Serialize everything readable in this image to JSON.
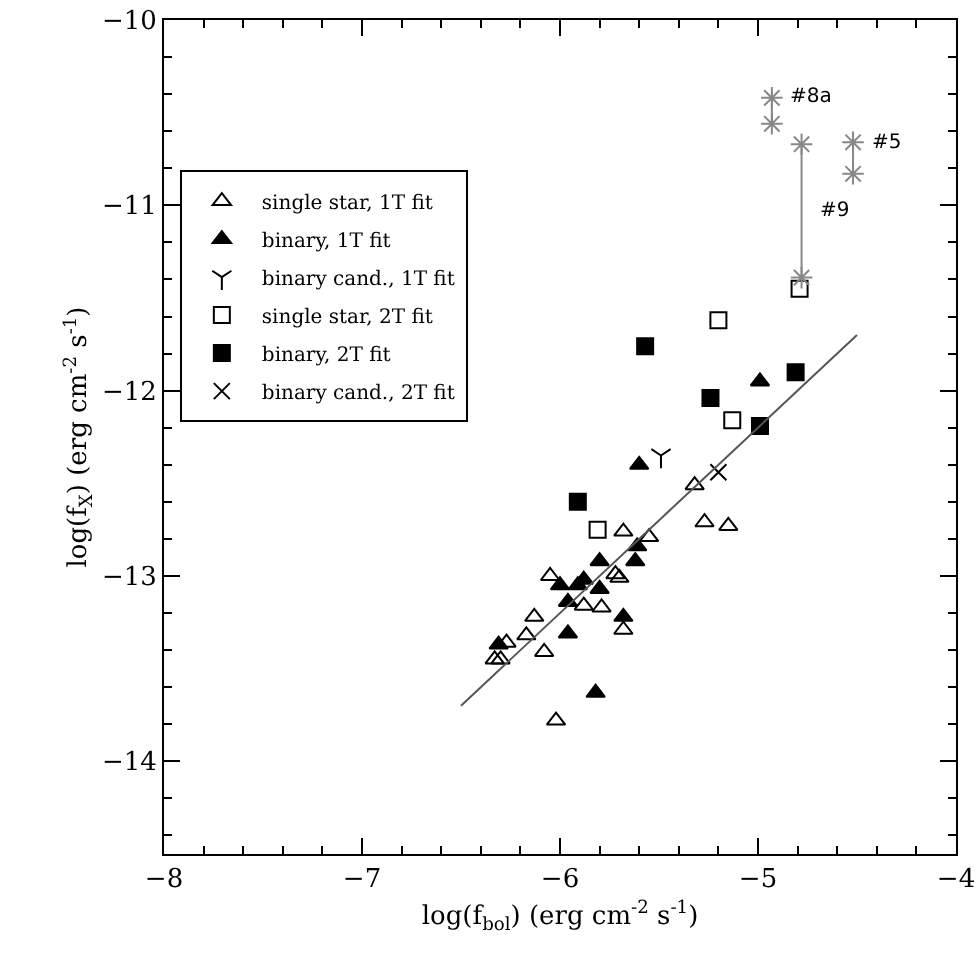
{
  "chart_data": {
    "type": "scatter",
    "xlabel": "log(f$_{bol}$) (erg cm$^{-2}$ s$^{-1}$)",
    "ylabel": "log(f$_{X}$) (erg cm$^{-2}$ s$^{-1}$)",
    "xlim": [
      -8,
      -4
    ],
    "xticks": [
      -8,
      -7,
      -6,
      -5,
      -4
    ],
    "ylim": [
      -14.5,
      -10
    ],
    "yticks": [
      -14,
      -13,
      -12,
      -11,
      -10
    ],
    "grid": false,
    "legend": "top left",
    "series": [
      {
        "name": "single star, 1T fit",
        "color": "#000000",
        "marker": "triangle-open",
        "x": [
          -5.68,
          -5.72,
          -5.7,
          -6.05,
          -5.88,
          -5.79,
          -5.68,
          -6.13,
          -6.17,
          -6.08,
          -6.27,
          -6.33,
          -6.3,
          -6.02,
          -5.55,
          -5.32,
          -5.27,
          -5.15
        ],
        "values": [
          -12.76,
          -12.99,
          -13.01,
          -13.0,
          -13.16,
          -13.17,
          -13.29,
          -13.22,
          -13.32,
          -13.41,
          -13.36,
          -13.45,
          -13.45,
          -13.78,
          -12.79,
          -12.51,
          -12.71,
          -12.73
        ]
      },
      {
        "name": "binary, 1T fit",
        "color": "#000000",
        "marker": "triangle",
        "x": [
          -5.61,
          -5.62,
          -5.8,
          -6.0,
          -5.91,
          -5.88,
          -5.8,
          -5.96,
          -5.68,
          -5.96,
          -6.31,
          -5.82,
          -5.6,
          -4.99
        ],
        "values": [
          -12.84,
          -12.92,
          -12.92,
          -13.05,
          -13.05,
          -13.02,
          -13.07,
          -13.14,
          -13.22,
          -13.31,
          -13.37,
          -13.63,
          -12.4,
          -11.95
        ]
      },
      {
        "name": "binary cand., 1T fit",
        "color": "#000000",
        "x": [
          -5.49
        ],
        "values": [
          -12.35
        ]
      },
      {
        "name": "single star, 2T fit",
        "color": "#000000",
        "marker": "square-open",
        "x": [
          -5.81,
          -5.2,
          -5.13,
          -4.79
        ],
        "values": [
          -12.75,
          -11.62,
          -12.16,
          -11.45
        ]
      },
      {
        "name": "binary, 2T fit",
        "color": "#000000",
        "marker": "square",
        "x": [
          -5.91,
          -5.57,
          -5.24,
          -4.99,
          -4.81
        ],
        "values": [
          -12.6,
          -11.76,
          -12.04,
          -12.19,
          -11.9
        ]
      },
      {
        "name": "binary cand., 2T fit",
        "color": "#000000",
        "marker": "cross",
        "x": [
          -5.2
        ],
        "values": [
          -12.44
        ]
      },
      {
        "type": "line",
        "color": "#555555",
        "marker": "none",
        "x": [
          -6.5,
          -4.5
        ],
        "values": [
          -13.7,
          -11.7
        ]
      },
      {
        "type": "line",
        "color": "#888888",
        "marker": "cross",
        "x": [
          -4.93,
          -4.93,
          null,
          -4.78,
          -4.78,
          null,
          -4.52,
          -4.52
        ],
        "values": [
          -10.42,
          -10.56,
          null,
          -10.67,
          -11.39,
          null,
          -10.66,
          -10.83
        ]
      }
    ],
    "annotations": [
      {
        "text": "#8a",
        "x": -4.93,
        "y": -10.42
      },
      {
        "text": "#9",
        "x": -4.78,
        "y": -11.03
      },
      {
        "text": "#5",
        "x": -4.52,
        "y": -10.66
      }
    ]
  }
}
